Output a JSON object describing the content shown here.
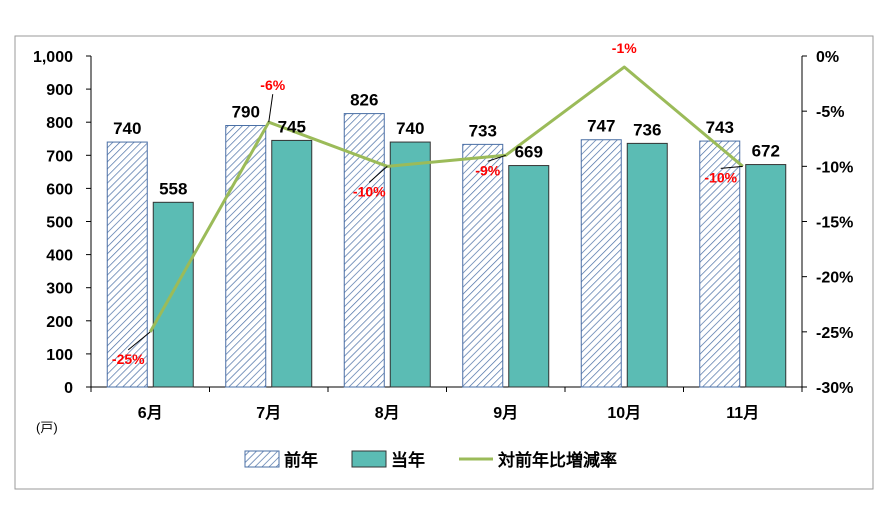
{
  "chart_data": {
    "type": "bar",
    "categories": [
      "6月",
      "7月",
      "8月",
      "9月",
      "10月",
      "11月"
    ],
    "series": [
      {
        "name": "前年",
        "values": [
          740,
          790,
          826,
          733,
          747,
          743
        ],
        "color": "#4a6fa5",
        "fill": "hatched"
      },
      {
        "name": "当年",
        "values": [
          558,
          745,
          740,
          669,
          736,
          672
        ],
        "color": "#5bbcb4",
        "fill": "solid"
      },
      {
        "name": "対前年比増減率",
        "type": "line",
        "axis": "right",
        "values": [
          -25,
          -6,
          -10,
          -9,
          -1,
          -10
        ],
        "labels": [
          "-25%",
          "-6%",
          "-10%",
          "-9%",
          "-1%",
          "-10%"
        ],
        "color": "#9bbb59",
        "label_color": "#ff0000"
      }
    ],
    "ylim": [
      0,
      1000
    ],
    "y_ticks": [
      "0",
      "100",
      "200",
      "300",
      "400",
      "500",
      "600",
      "700",
      "800",
      "900",
      "1,000"
    ],
    "y2lim": [
      -30,
      0
    ],
    "y2_ticks": [
      "-30%",
      "-25%",
      "-20%",
      "-15%",
      "-10%",
      "-5%",
      "0%"
    ],
    "unit": "(戸)",
    "grid": false,
    "legend_position": "bottom"
  }
}
